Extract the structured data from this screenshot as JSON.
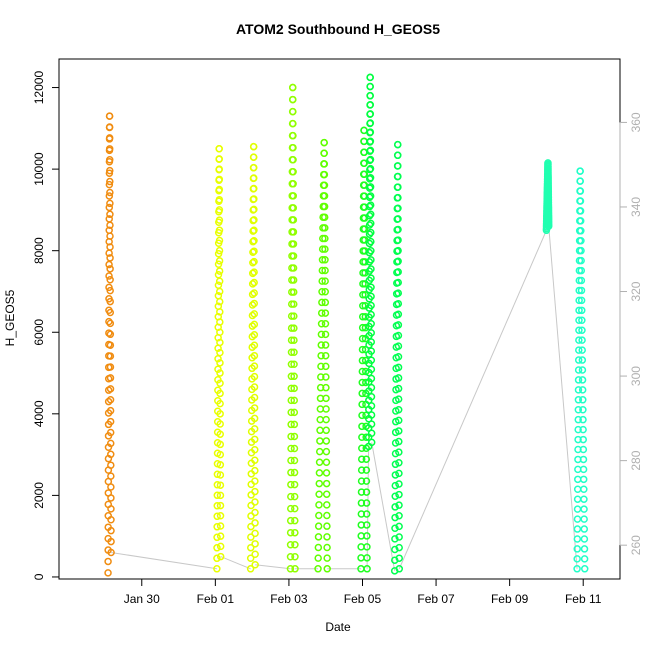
{
  "chart_data": {
    "type": "scatter",
    "title": "ATOM2 Southbound H_GEOS5",
    "xlabel": "Date",
    "ylabel": "H_GEOS5",
    "xlim": [
      "2016-01-27T18:00",
      "2016-02-12T00:00"
    ],
    "ylim": [
      -50,
      12700
    ],
    "ylim_right": [
      252,
      375
    ],
    "x_ticks": [
      {
        "label": "Jan 30",
        "date": "2016-01-30"
      },
      {
        "label": "Feb 01",
        "date": "2016-02-01"
      },
      {
        "label": "Feb 03",
        "date": "2016-02-03"
      },
      {
        "label": "Feb 05",
        "date": "2016-02-05"
      },
      {
        "label": "Feb 07",
        "date": "2016-02-07"
      },
      {
        "label": "Feb 09",
        "date": "2016-02-09"
      },
      {
        "label": "Feb 11",
        "date": "2016-02-11"
      }
    ],
    "y_ticks": [
      0,
      2000,
      4000,
      6000,
      8000,
      10000,
      12000
    ],
    "y_ticks_right": [
      260,
      280,
      300,
      320,
      340,
      360
    ],
    "grid": false,
    "legend": "none",
    "series": [
      {
        "color": "#f08c10",
        "points": [
          [
            "2016-01-29T02:00",
            100
          ],
          [
            "2016-01-29T03:00",
            11300
          ],
          [
            "2016-01-29T04:00",
            600
          ]
        ]
      },
      {
        "color": "#e8ff00",
        "points": [
          [
            "2016-02-01T01:00",
            200
          ],
          [
            "2016-02-01T02:30",
            10500
          ],
          [
            "2016-02-01T03:30",
            500
          ]
        ]
      },
      {
        "color": "#e0ff00",
        "points": [
          [
            "2016-02-01T23:00",
            200
          ],
          [
            "2016-02-02T01:00",
            10550
          ],
          [
            "2016-02-02T02:00",
            300
          ]
        ]
      },
      {
        "color": "#90ff00",
        "points": [
          [
            "2016-02-03T01:00",
            200
          ],
          [
            "2016-02-03T02:30",
            12000
          ],
          [
            "2016-02-03T04:00",
            200
          ]
        ]
      },
      {
        "color": "#60ff00",
        "points": [
          [
            "2016-02-03T19:00",
            200
          ],
          [
            "2016-02-03T23:00",
            10650
          ],
          [
            "2016-02-04T01:00",
            200
          ]
        ]
      },
      {
        "color": "#20ff20",
        "points": [
          [
            "2016-02-04T23:00",
            200
          ],
          [
            "2016-02-05T01:00",
            10950
          ],
          [
            "2016-02-05T03:00",
            200
          ]
        ]
      },
      {
        "color": "#00ff40",
        "points": [
          [
            "2016-02-05T04:00",
            3200
          ],
          [
            "2016-02-05T05:00",
            12250
          ],
          [
            "2016-02-05T06:00",
            3300
          ]
        ]
      },
      {
        "color": "#00ff50",
        "points": [
          [
            "2016-02-05T21:00",
            150
          ],
          [
            "2016-02-05T23:00",
            10600
          ],
          [
            "2016-02-06T00:00",
            200
          ]
        ]
      },
      {
        "color": "#20ffb0",
        "points": [
          [
            "2016-02-10T00:00",
            8500
          ],
          [
            "2016-02-10T01:00",
            10150
          ],
          [
            "2016-02-10T01:30",
            8600
          ]
        ]
      },
      {
        "color": "#20ffc8",
        "points": [
          [
            "2016-02-10T20:00",
            200
          ],
          [
            "2016-02-10T22:00",
            9950
          ],
          [
            "2016-02-11T01:00",
            200
          ]
        ]
      }
    ]
  }
}
